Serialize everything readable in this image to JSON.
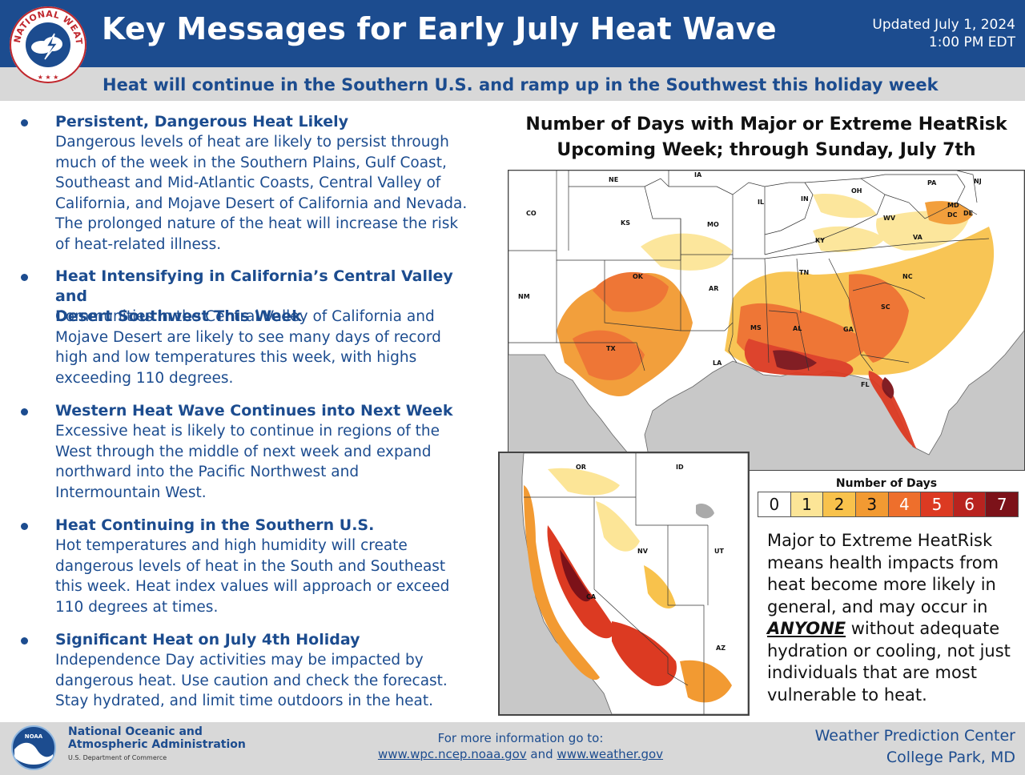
{
  "header": {
    "title": "Key Messages for Early July Heat Wave",
    "updated_line1": "Updated July 1, 2024",
    "updated_line2": "1:00 PM EDT",
    "logo_text": "NATIONAL WEATHER SERVICE",
    "subtitle": "Heat will continue in the Southern U.S. and ramp up in the Southwest this holiday week"
  },
  "messages": [
    {
      "heading": "Persistent, Dangerous Heat Likely",
      "body": [
        "Dangerous levels of heat are likely to persist through",
        "much of the week in the Southern Plains, Gulf Coast,",
        "Southeast and Mid-Atlantic Coasts, Central Valley of",
        "California, and Mojave Desert of California and Nevada.",
        "The prolonged nature of the heat will increase the risk",
        "of heat-related illness."
      ]
    },
    {
      "heading_lines": [
        "Heat Intensifying in California’s Central Valley and",
        "Desert Southwest This Week"
      ],
      "body": [
        "Communities in the Central Valley of California and",
        "Mojave Desert are likely to see many days of record",
        "high and low temperatures this week, with highs",
        "exceeding 110 degrees."
      ]
    },
    {
      "heading": "Western Heat Wave Continues into Next Week",
      "body": [
        "Excessive heat is likely to continue in regions of the",
        "West through the middle of next week and expand",
        "northward into the Pacific Northwest and",
        "Intermountain West."
      ]
    },
    {
      "heading": "Heat Continuing in the Southern U.S.",
      "body": [
        "Hot temperatures and high humidity will create",
        "dangerous levels of heat in the South and Southeast",
        "this week. Heat index values will approach or exceed",
        "110 degrees at times."
      ]
    },
    {
      "heading": "Significant Heat on July 4th Holiday",
      "body": [
        "Independence Day activities may be impacted by",
        "dangerous heat. Use caution and check the forecast.",
        "Stay hydrated, and limit time outdoors in the heat."
      ]
    }
  ],
  "map": {
    "title_line1": "Number of Days with Major or Extreme HeatRisk",
    "title_line2": "Upcoming Week; through Sunday, July 7th",
    "state_labels": {
      "NE": "NE",
      "IA": "IA",
      "CO": "CO",
      "KS": "KS",
      "MO": "MO",
      "IL": "IL",
      "IN": "IN",
      "OH": "OH",
      "PA": "PA",
      "NJ": "NJ",
      "MD": "MD",
      "DC": "DC",
      "DE": "DE",
      "WV": "WV",
      "VA": "VA",
      "KY": "KY",
      "NM": "NM",
      "OK": "OK",
      "AR": "AR",
      "TN": "TN",
      "NC": "NC",
      "SC": "SC",
      "MS": "MS",
      "AL": "AL",
      "GA": "GA",
      "TX": "TX",
      "LA": "LA",
      "FL": "FL",
      "OR": "OR",
      "ID": "ID",
      "NV": "NV",
      "UT": "UT",
      "CA": "CA",
      "AZ": "AZ"
    },
    "legend_title": "Number of Days",
    "legend_values": [
      "0",
      "1",
      "2",
      "3",
      "4",
      "5",
      "6",
      "7"
    ],
    "legend_colors": [
      "#ffffff",
      "#fce597",
      "#f8c24c",
      "#f29a32",
      "#ee6f2c",
      "#dc3a22",
      "#b8231f",
      "#7c1219"
    ]
  },
  "note": {
    "part1": "Major to Extreme HeatRisk means health impacts from heat become more likely in general, and may occur in",
    "emphasis": "ANYONE",
    "part2": "without adequate hydration or cooling, not just individuals that are most vulnerable to heat."
  },
  "footer": {
    "noaa_logo_text": "NOAA",
    "noaa_name_line1": "National Oceanic and",
    "noaa_name_line2": "Atmospheric Administration",
    "noaa_dept": "U.S. Department of Commerce",
    "more_info": "For more information go to:",
    "link1": "www.wpc.ncep.noaa.gov",
    "and": "and",
    "link2": "www.weather.gov",
    "wpc_line1": "Weather Prediction Center",
    "wpc_line2": "College Park, MD"
  }
}
